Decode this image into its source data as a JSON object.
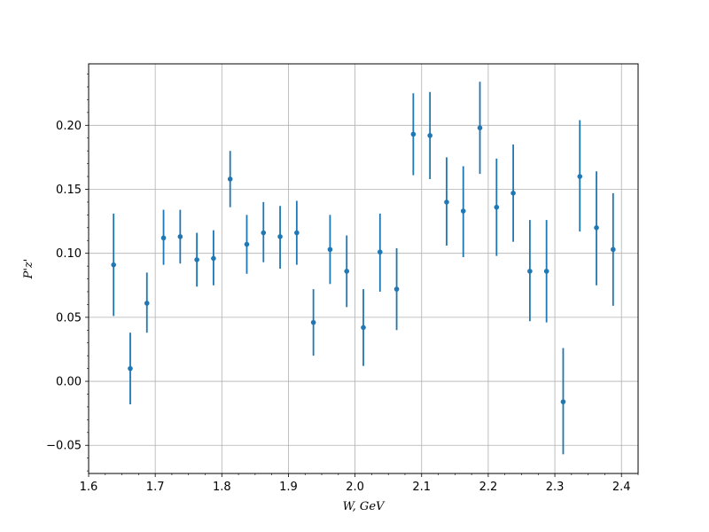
{
  "chart_data": {
    "type": "scatter",
    "title": "",
    "xlabel": "W, GeV",
    "ylabel": "P'z'",
    "xlim": [
      1.6,
      2.425
    ],
    "ylim": [
      -0.072,
      0.248
    ],
    "x_ticks": [
      1.6,
      1.7,
      1.8,
      1.9,
      2.0,
      2.1,
      2.2,
      2.3,
      2.4
    ],
    "x_tick_labels": [
      "1.6",
      "1.7",
      "1.8",
      "1.9",
      "2.0",
      "2.1",
      "2.2",
      "2.3",
      "2.4"
    ],
    "y_ticks": [
      -0.05,
      0.0,
      0.05,
      0.1,
      0.15,
      0.2
    ],
    "y_tick_labels": [
      "−0.05",
      "0.00",
      "0.05",
      "0.10",
      "0.15",
      "0.20"
    ],
    "grid": true,
    "legend": "none",
    "color": "#1f77b4",
    "series": [
      {
        "x": [
          1.6375,
          1.6625,
          1.6875,
          1.7125,
          1.7375,
          1.7625,
          1.7875,
          1.8125,
          1.8375,
          1.8625,
          1.8875,
          1.9125,
          1.9375,
          1.9625,
          1.9875,
          2.0125,
          2.0375,
          2.0625,
          2.0875,
          2.1125,
          2.1375,
          2.1625,
          2.1875,
          2.2125,
          2.2375,
          2.2625,
          2.2875,
          2.3125,
          2.3375,
          2.3625,
          2.3875
        ],
        "y": [
          0.091,
          0.01,
          0.061,
          0.112,
          0.113,
          0.095,
          0.096,
          0.158,
          0.107,
          0.116,
          0.113,
          0.116,
          0.046,
          0.103,
          0.086,
          0.042,
          0.101,
          0.072,
          0.193,
          0.192,
          0.14,
          0.133,
          0.198,
          0.136,
          0.147,
          0.086,
          0.086,
          -0.016,
          0.16,
          0.12,
          0.103
        ],
        "y_lower": [
          0.051,
          -0.018,
          0.038,
          0.091,
          0.092,
          0.074,
          0.075,
          0.136,
          0.084,
          0.093,
          0.088,
          0.091,
          0.02,
          0.076,
          0.058,
          0.012,
          0.07,
          0.04,
          0.161,
          0.158,
          0.106,
          0.097,
          0.162,
          0.098,
          0.109,
          0.047,
          0.046,
          -0.057,
          0.117,
          0.075,
          0.059
        ],
        "y_upper": [
          0.131,
          0.038,
          0.085,
          0.134,
          0.134,
          0.116,
          0.118,
          0.18,
          0.13,
          0.14,
          0.137,
          0.141,
          0.072,
          0.13,
          0.114,
          0.072,
          0.131,
          0.104,
          0.225,
          0.226,
          0.175,
          0.168,
          0.234,
          0.174,
          0.185,
          0.126,
          0.126,
          0.026,
          0.204,
          0.164,
          0.147
        ]
      }
    ]
  }
}
